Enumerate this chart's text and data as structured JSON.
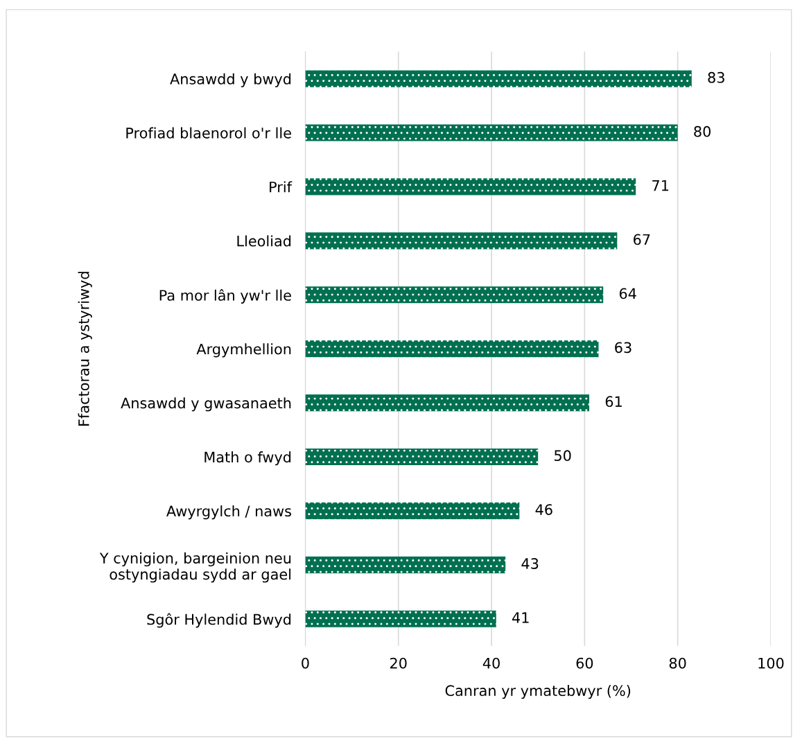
{
  "chart_data": {
    "type": "bar",
    "orientation": "horizontal",
    "xlabel": "Canran yr ymatebwyr (%)",
    "ylabel": "Ffactorau a ystyriwyd",
    "categories": [
      "Ansawdd y bwyd",
      "Profiad blaenorol o'r lle",
      "Prif",
      "Lleoliad",
      "Pa mor lân yw'r lle",
      "Argymhellion",
      "Ansawdd y gwasanaeth",
      "Math o fwyd",
      "Awyrgylch / naws",
      "Y cynigion, bargeinion neu\nostyngiadau sydd ar gael",
      "Sgôr Hylendid Bwyd"
    ],
    "values": [
      83,
      80,
      71,
      67,
      64,
      63,
      61,
      50,
      46,
      43,
      41
    ],
    "color": "#007050",
    "xlim": [
      0,
      100
    ],
    "xticks": [
      0,
      20,
      40,
      60,
      80,
      100
    ],
    "grid": "x",
    "data_labels": true,
    "legend": false
  }
}
